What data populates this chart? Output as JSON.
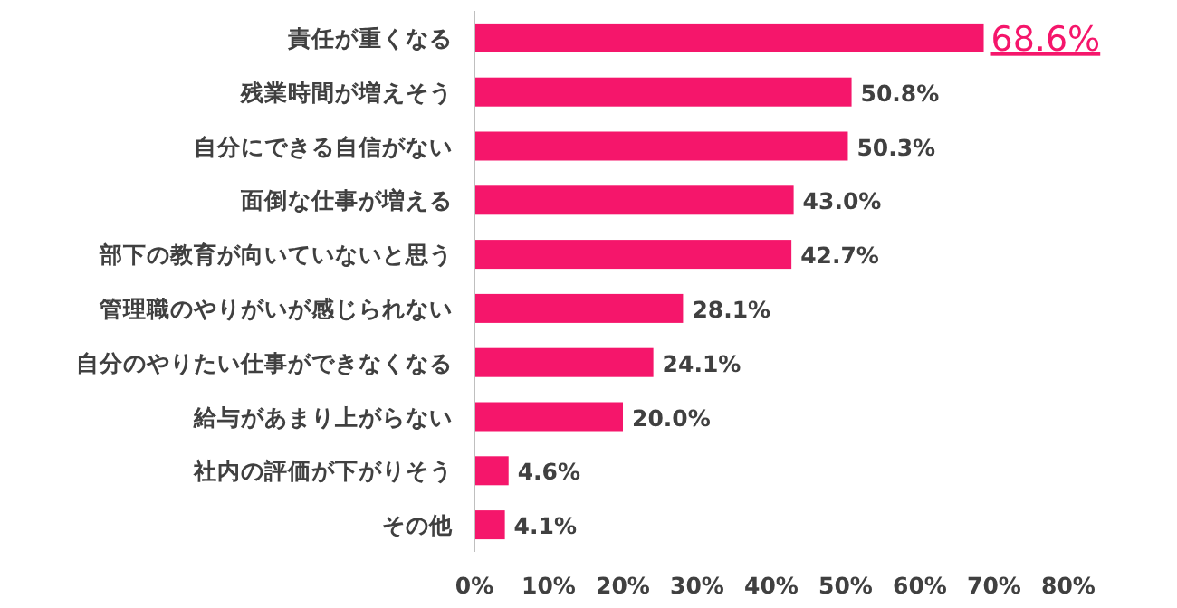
{
  "chart_data": {
    "type": "bar",
    "orientation": "horizontal",
    "categories": [
      "責任が重くなる",
      "残業時間が増えそう",
      "自分にできる自信がない",
      "面倒な仕事が増える",
      "部下の教育が向いていないと思う",
      "管理職のやりがいが感じられない",
      "自分のやりたい仕事ができなくなる",
      "給与があまり上がらない",
      "社内の評価が下がりそう",
      "その他"
    ],
    "values": [
      68.6,
      50.8,
      50.3,
      43.0,
      42.7,
      28.1,
      24.1,
      20.0,
      4.6,
      4.1
    ],
    "value_labels": [
      "68.6%",
      "50.8%",
      "50.3%",
      "43.0%",
      "42.7%",
      "28.1%",
      "24.1%",
      "20.0%",
      "4.6%",
      "4.1%"
    ],
    "color": "#f5166b",
    "xlim": [
      0,
      80
    ],
    "xticks": [
      {
        "value": 0,
        "label": "0%"
      },
      {
        "value": 10,
        "label": "10%"
      },
      {
        "value": 20,
        "label": "20%"
      },
      {
        "value": 30,
        "label": "30%"
      },
      {
        "value": 40,
        "label": "40%"
      },
      {
        "value": 50,
        "label": "50%"
      },
      {
        "value": 60,
        "label": "60%"
      },
      {
        "value": 70,
        "label": "70%"
      },
      {
        "value": 80,
        "label": "80%"
      }
    ],
    "grid": false
  }
}
